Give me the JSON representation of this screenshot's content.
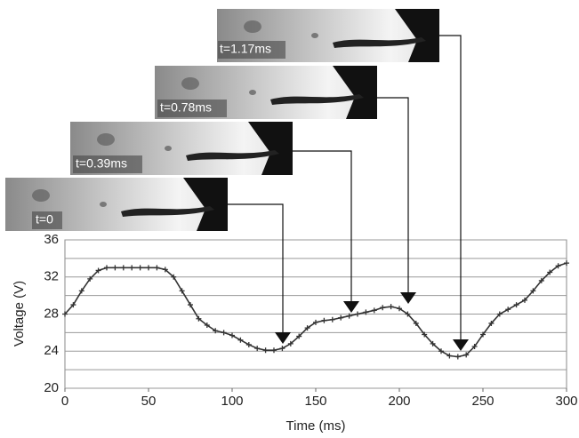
{
  "chart_data": {
    "type": "line",
    "x_label": "Time (ms)",
    "y_label": "Voltage (V)",
    "xlim": [
      0,
      300
    ],
    "xticks": [
      0,
      50,
      100,
      150,
      200,
      250,
      300
    ],
    "ylim": [
      20,
      36
    ],
    "yticks": [
      20,
      24,
      28,
      32,
      36
    ],
    "minor_yticks": [
      22,
      26,
      30,
      34
    ],
    "grid": true,
    "insets": [
      "t=0",
      "t=0.39ms",
      "t=0.78ms",
      "t=1.17ms"
    ],
    "series": [
      {
        "color": "#333333",
        "x": [
          0,
          5,
          10,
          15,
          20,
          25,
          30,
          35,
          40,
          45,
          50,
          55,
          60,
          65,
          70,
          75,
          80,
          85,
          90,
          95,
          100,
          105,
          110,
          115,
          120,
          125,
          130,
          135,
          140,
          145,
          150,
          155,
          160,
          165,
          170,
          175,
          180,
          185,
          190,
          195,
          200,
          205,
          210,
          215,
          220,
          225,
          230,
          235,
          240,
          245,
          250,
          255,
          260,
          265,
          270,
          275,
          280,
          285,
          290,
          295,
          300
        ],
        "values": [
          28,
          29,
          30.5,
          31.8,
          32.7,
          33,
          33,
          33,
          33,
          33,
          33,
          33,
          32.8,
          32,
          30.5,
          29,
          27.5,
          26.8,
          26.2,
          26,
          25.7,
          25.2,
          24.7,
          24.3,
          24.1,
          24.1,
          24.3,
          24.8,
          25.6,
          26.5,
          27.1,
          27.3,
          27.4,
          27.6,
          27.8,
          28,
          28.2,
          28.4,
          28.7,
          28.8,
          28.6,
          28,
          27,
          25.8,
          24.8,
          24,
          23.5,
          23.4,
          23.6,
          24.5,
          25.8,
          27,
          28,
          28.5,
          29,
          29.5,
          30.5,
          31.6,
          32.5,
          33.2,
          33.5
        ]
      }
    ]
  }
}
